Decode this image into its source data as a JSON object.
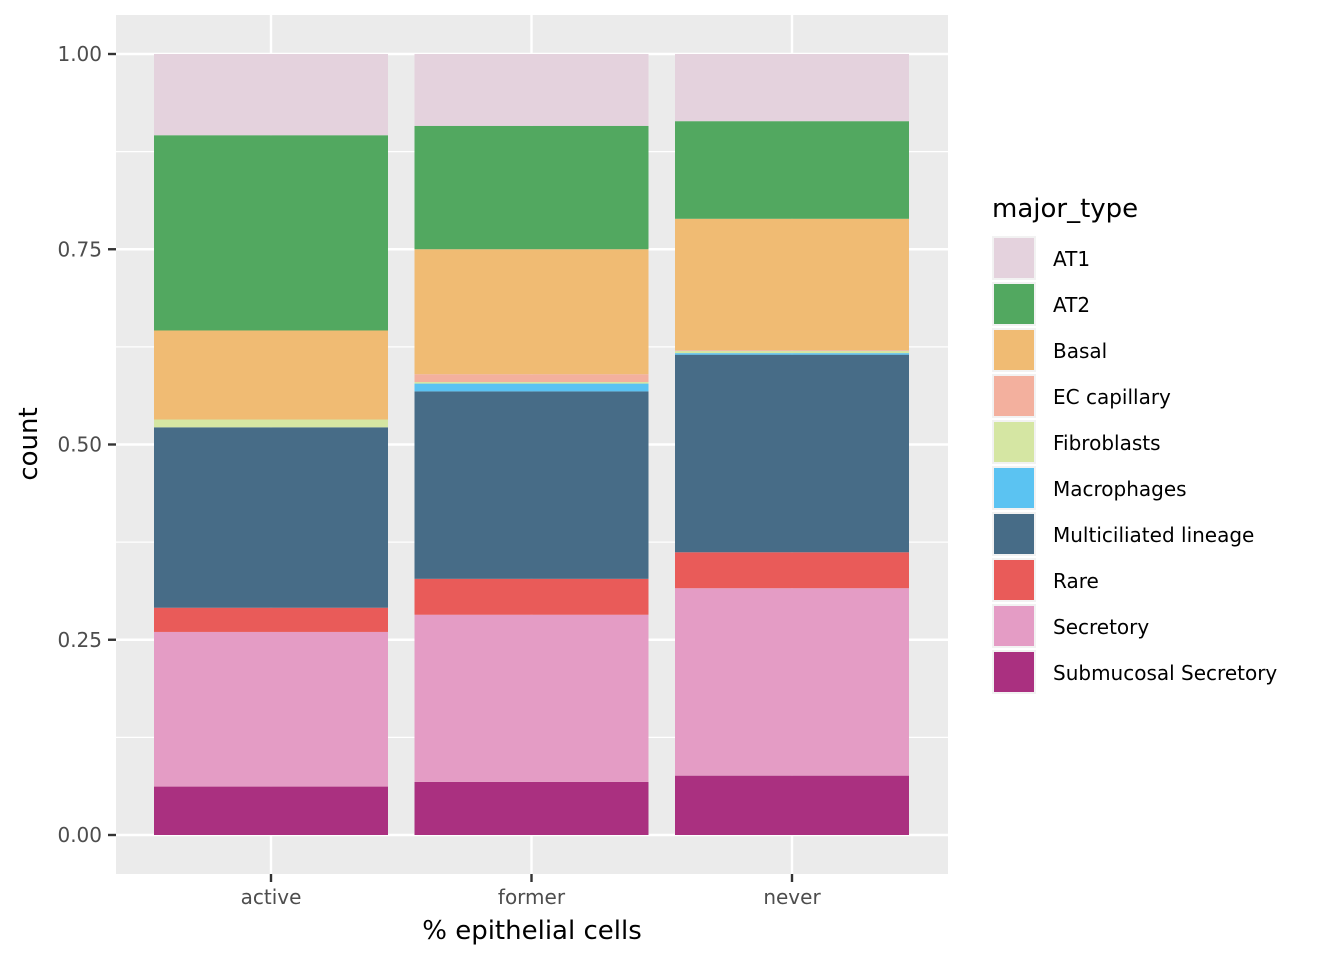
{
  "chart_data": {
    "type": "bar",
    "stacked": true,
    "xlabel": "% epithelial cells",
    "ylabel": "count",
    "ylim": [
      0,
      1
    ],
    "yticks": [
      0,
      0.25,
      0.5,
      0.75,
      1
    ],
    "ytick_labels": [
      "0.00",
      "0.25",
      "0.50",
      "0.75",
      "1.00"
    ],
    "grid": true,
    "legend": {
      "title": "major_type",
      "position": "right"
    },
    "categories": [
      "active",
      "former",
      "never"
    ],
    "series": [
      {
        "name": "AT1",
        "color": "#E4D2DD",
        "values": [
          0.104,
          0.092,
          0.086
        ]
      },
      {
        "name": "AT2",
        "color": "#52A860",
        "values": [
          0.25,
          0.158,
          0.125
        ]
      },
      {
        "name": "Basal",
        "color": "#F0BB73",
        "values": [
          0.114,
          0.16,
          0.168
        ]
      },
      {
        "name": "EC capillary",
        "color": "#F3B09E",
        "values": [
          0.0,
          0.01,
          0.001
        ]
      },
      {
        "name": "Fibroblasts",
        "color": "#D5E6A3",
        "values": [
          0.01,
          0.002,
          0.003
        ]
      },
      {
        "name": "Macrophages",
        "color": "#5BC3F2",
        "values": [
          0.0,
          0.01,
          0.002
        ]
      },
      {
        "name": "Multiciliated lineage",
        "color": "#476C87",
        "values": [
          0.231,
          0.24,
          0.253
        ]
      },
      {
        "name": "Rare",
        "color": "#E95B59",
        "values": [
          0.031,
          0.046,
          0.046
        ]
      },
      {
        "name": "Secretory",
        "color": "#E49CC5",
        "values": [
          0.198,
          0.214,
          0.24
        ]
      },
      {
        "name": "Submucosal Secretory",
        "color": "#AA3080",
        "values": [
          0.062,
          0.068,
          0.076
        ]
      }
    ]
  }
}
